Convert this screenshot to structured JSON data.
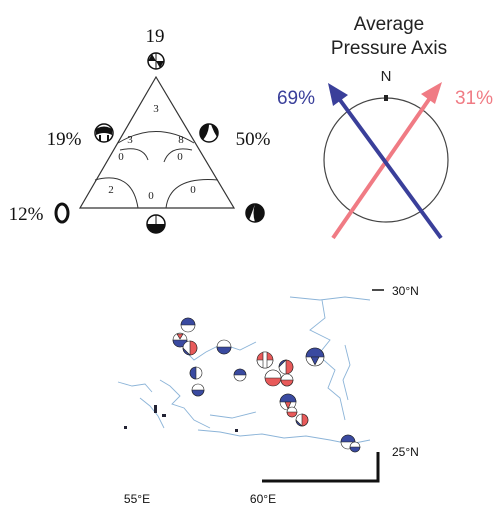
{
  "triangle": {
    "top_count": "19",
    "left_pct": "19%",
    "right_pct": "50%",
    "bottomleft_pct": "12%",
    "regions": {
      "top": "3",
      "upper_left": "3",
      "upper_right": "8",
      "mid_left": "0",
      "mid_right": "0",
      "bottom_left": "2",
      "bottom_center": "0",
      "bottom_right": "0"
    }
  },
  "pressure_axis": {
    "title_line1": "Average",
    "title_line2": "Pressure Axis",
    "north_label": "N",
    "blue_pct": "69%",
    "red_pct": "31%",
    "blue_color": "#3a3f9a",
    "red_color": "#f07b84"
  },
  "map": {
    "lat_top_label": "30°N",
    "lat_bottom_label": "25°N",
    "lon_left_label": "55°E",
    "lon_right_label": "60°E"
  }
}
